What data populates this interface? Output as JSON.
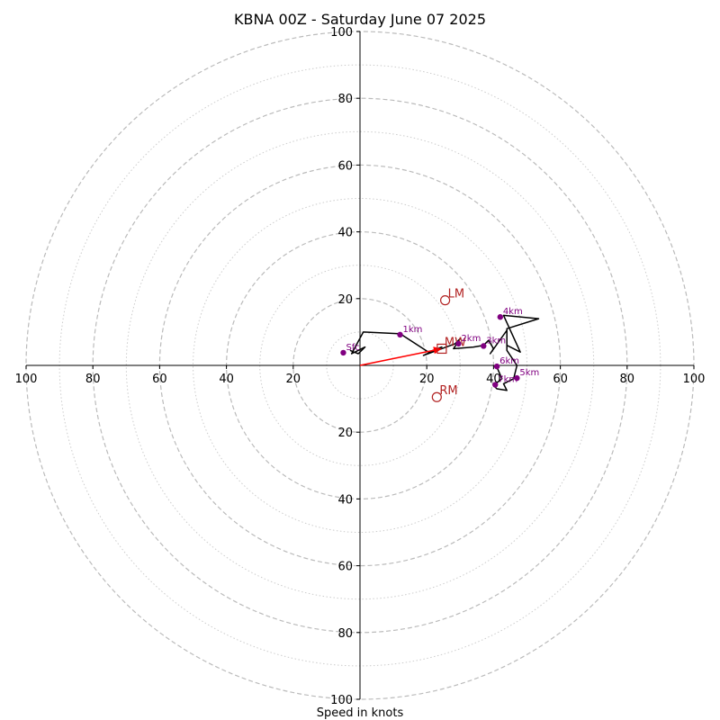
{
  "chart_data": {
    "type": "hodograph",
    "title": "KBNA 00Z - Saturday June 07 2025",
    "xlabel": "Speed in knots",
    "range": 100,
    "ring_major_step": 20,
    "ring_minor_step": 10,
    "ticks": {
      "x_left": [
        "100",
        "80",
        "60",
        "40",
        "20"
      ],
      "x_right": [
        "20",
        "40",
        "60",
        "80",
        "100"
      ],
      "y_up": [
        "100",
        "80",
        "60",
        "40",
        "20"
      ],
      "y_down": [
        "20",
        "40",
        "60",
        "80",
        "100"
      ]
    },
    "colors": {
      "hodo_line": "#000000",
      "height_marker": "#800080",
      "motion": "#b22222",
      "shear_vector": "#ff0000",
      "ring_major": "#bbbbbb",
      "ring_minor": "#cccccc"
    },
    "profile": [
      [
        -3,
        4.5
      ],
      [
        -0.5,
        3.5
      ],
      [
        1.5,
        5.5
      ],
      [
        -2.5,
        3.5
      ],
      [
        1,
        10
      ],
      [
        11.5,
        9.5
      ],
      [
        12,
        9.5
      ],
      [
        20.5,
        4
      ],
      [
        24.5,
        5.5
      ],
      [
        19,
        3
      ],
      [
        28.5,
        6.5
      ],
      [
        30,
        8
      ],
      [
        28,
        5
      ],
      [
        34,
        5.5
      ],
      [
        37,
        6
      ],
      [
        38.5,
        7.5
      ],
      [
        40,
        5
      ],
      [
        39,
        3.5
      ],
      [
        44,
        10.5
      ],
      [
        44,
        6
      ],
      [
        48,
        4
      ],
      [
        43,
        15
      ],
      [
        53.5,
        14
      ],
      [
        44,
        11
      ],
      [
        44,
        4.5
      ],
      [
        47,
        0
      ],
      [
        46,
        -4
      ],
      [
        43,
        -5.5
      ],
      [
        44,
        -7.5
      ],
      [
        41,
        -7
      ],
      [
        40,
        -6
      ],
      [
        42.5,
        -4
      ],
      [
        41,
        -0.5
      ]
    ],
    "height_markers": [
      {
        "label": "Sfc",
        "u": -5,
        "v": 3.8
      },
      {
        "label": "1km",
        "u": 12,
        "v": 9.2
      },
      {
        "label": "2km",
        "u": 29.5,
        "v": 6.5
      },
      {
        "label": "3km",
        "u": 37,
        "v": 5.8
      },
      {
        "label": "4km",
        "u": 42,
        "v": 14.5
      },
      {
        "label": "5km",
        "u": 47,
        "v": -3.8
      },
      {
        "label": "6km",
        "u": 41,
        "v": -0.3
      },
      {
        "label": "7km",
        "u": 40.5,
        "v": -5.8
      }
    ],
    "storm_motion": {
      "LM": {
        "label": "LM",
        "u": 25.5,
        "v": 19.5
      },
      "RM": {
        "label": "RM",
        "u": 23,
        "v": -9.5
      },
      "MW": {
        "label": "MW",
        "u": 24.5,
        "v": 5
      }
    },
    "shear_vector": {
      "u": 24.5,
      "v": 5
    }
  }
}
